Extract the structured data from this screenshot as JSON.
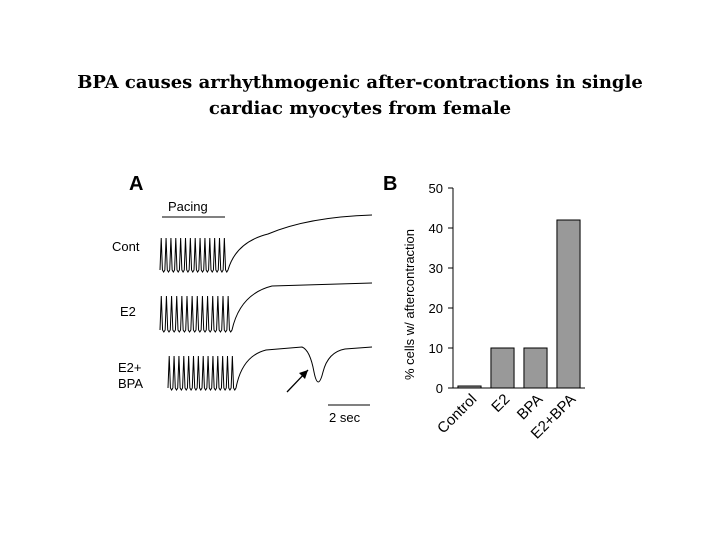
{
  "title": {
    "line1": "BPA causes arrhythmogenic after-contractions in single",
    "line2": "cardiac myocytes from female"
  },
  "panel_a": {
    "letter": "A",
    "pacing_label": "Pacing",
    "trace_labels": [
      "Cont",
      "E2",
      "E2+",
      "BPA"
    ],
    "scale_label": "2 sec"
  },
  "chart_data": {
    "type": "bar",
    "panel_letter": "B",
    "categories": [
      "Control",
      "E2",
      "BPA",
      "E2+BPA"
    ],
    "values": [
      0.5,
      10,
      10,
      42
    ],
    "ylabel": "% cells w/ aftercontraction",
    "xlabel": "",
    "ylim": [
      0,
      50
    ],
    "yticks": [
      0,
      10,
      20,
      30,
      40,
      50
    ],
    "bar_color": "#999999"
  }
}
